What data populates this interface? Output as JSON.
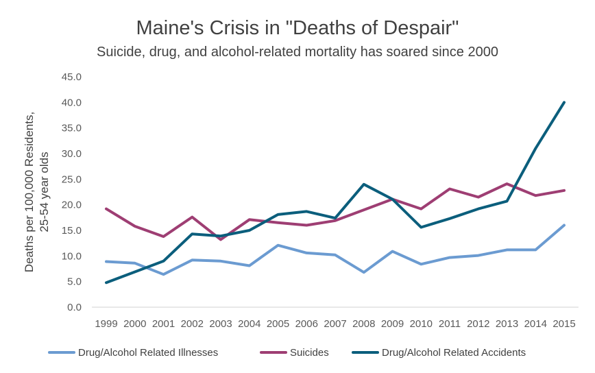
{
  "chart_data": {
    "type": "line",
    "title": "Maine's Crisis in \"Deaths of Despair\"",
    "subtitle": "Suicide, drug, and alcohol-related mortality has soared since 2000",
    "ylabel_line1": "Deaths per 100,000 Residents,",
    "ylabel_line2": "25-54 year olds",
    "xlabel": "",
    "ylim": [
      0,
      45
    ],
    "ytick_step": 5,
    "grid": false,
    "legend_position": "bottom",
    "categories": [
      "1999",
      "2000",
      "2001",
      "2002",
      "2003",
      "2004",
      "2005",
      "2006",
      "2007",
      "2008",
      "2009",
      "2010",
      "2011",
      "2012",
      "2013",
      "2014",
      "2015"
    ],
    "series": [
      {
        "name": "Drug/Alcohol Related Illnesses",
        "color": "#6b9bd1",
        "values": [
          8.9,
          8.6,
          6.4,
          9.2,
          9.0,
          8.1,
          12.1,
          10.6,
          10.2,
          6.8,
          10.9,
          8.4,
          9.7,
          10.1,
          11.2,
          11.2,
          16.0
        ]
      },
      {
        "name": "Suicides",
        "color": "#9e3e73",
        "values": [
          19.2,
          15.8,
          13.8,
          17.6,
          13.2,
          17.1,
          16.5,
          16.0,
          16.9,
          19.0,
          21.1,
          19.2,
          23.1,
          21.5,
          24.1,
          21.8,
          22.8
        ]
      },
      {
        "name": "Drug/Alcohol Related Accidents",
        "color": "#0b5e7c",
        "values": [
          4.8,
          6.9,
          9.0,
          14.3,
          13.9,
          15.0,
          18.1,
          18.7,
          17.4,
          24.0,
          21.1,
          15.6,
          17.3,
          19.2,
          20.7,
          31.0,
          40.0
        ]
      }
    ]
  }
}
